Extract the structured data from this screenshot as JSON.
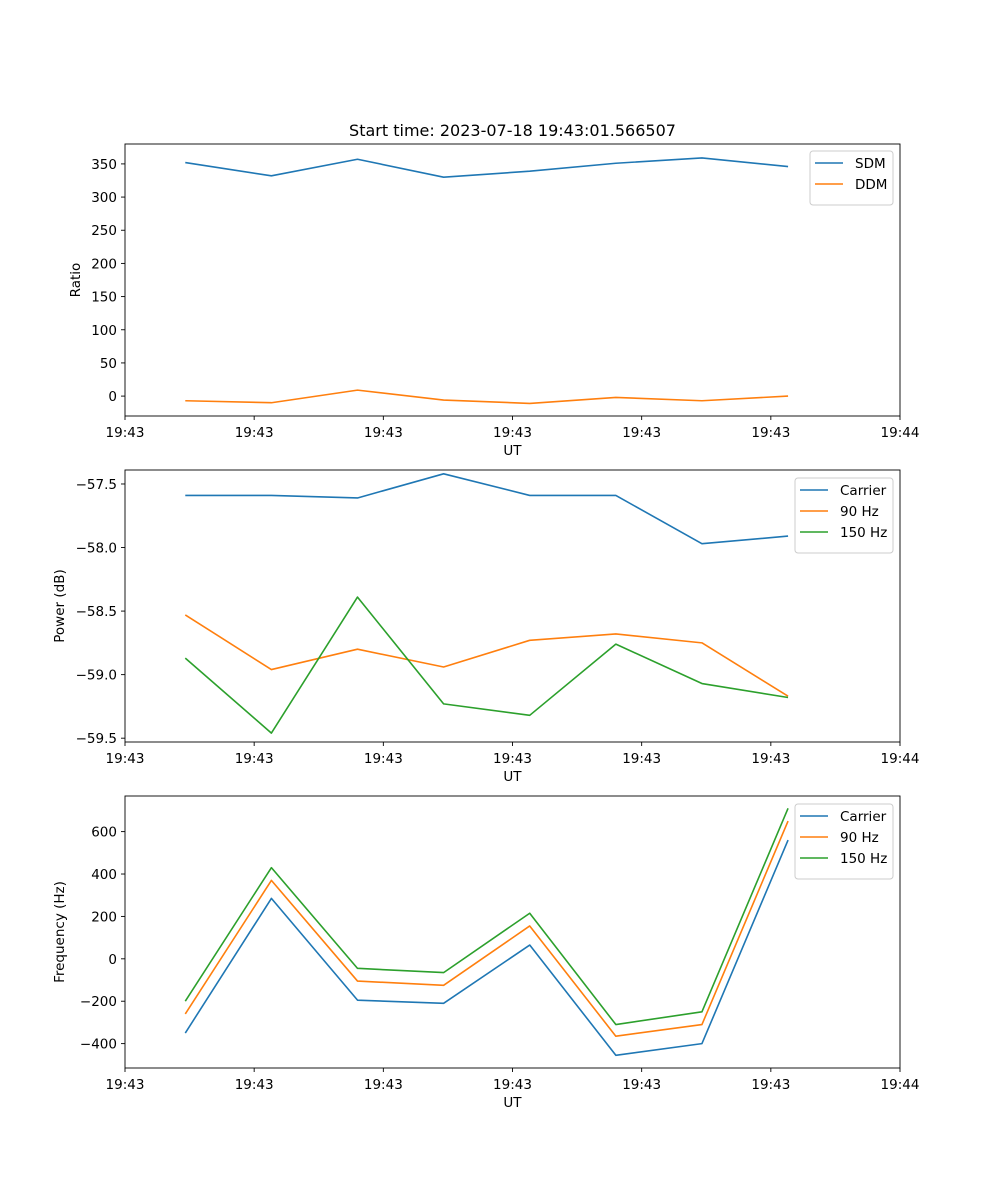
{
  "chart_data": [
    {
      "type": "line",
      "title": "Start time: 2023-07-18 19:43:01.566507",
      "xlabel": "UT",
      "ylabel": "Ratio",
      "xlim": [
        0,
        9
      ],
      "x_ticks": [
        0,
        1.5,
        3,
        4.5,
        6,
        7.5,
        9
      ],
      "x_tick_labels": [
        "19:43",
        "19:43",
        "19:43",
        "19:43",
        "19:43",
        "19:43",
        "19:44"
      ],
      "ylim": [
        -30,
        380
      ],
      "y_ticks": [
        0,
        50,
        100,
        150,
        200,
        250,
        300,
        350
      ],
      "y_tick_labels": [
        "0",
        "50",
        "100",
        "150",
        "200",
        "250",
        "300",
        "350"
      ],
      "x": [
        0.7,
        1.7,
        2.7,
        3.7,
        4.7,
        5.7,
        6.7,
        7.7
      ],
      "series": [
        {
          "name": "SDM",
          "color": "#1f77b4",
          "values": [
            352,
            332,
            357,
            330,
            339,
            351,
            359,
            346
          ]
        },
        {
          "name": "DDM",
          "color": "#ff7f0e",
          "values": [
            -7,
            -10,
            9,
            -6,
            -11,
            -2,
            -7,
            0
          ]
        }
      ],
      "legend_position": "top-right"
    },
    {
      "type": "line",
      "title": "",
      "xlabel": "UT",
      "ylabel": "Power (dB)",
      "xlim": [
        0,
        9
      ],
      "x_ticks": [
        0,
        1.5,
        3,
        4.5,
        6,
        7.5,
        9
      ],
      "x_tick_labels": [
        "19:43",
        "19:43",
        "19:43",
        "19:43",
        "19:43",
        "19:43",
        "19:44"
      ],
      "ylim": [
        -59.53,
        -57.39
      ],
      "y_ticks": [
        -57.5,
        -58.0,
        -58.5,
        -59.0,
        -59.5
      ],
      "y_tick_labels": [
        "−57.5",
        "−58.0",
        "−58.5",
        "−59.0",
        "−59.5"
      ],
      "x": [
        0.7,
        1.7,
        2.7,
        3.7,
        4.7,
        5.7,
        6.7,
        7.7
      ],
      "series": [
        {
          "name": "Carrier",
          "color": "#1f77b4",
          "values": [
            -57.59,
            -57.59,
            -57.61,
            -57.42,
            -57.59,
            -57.59,
            -57.97,
            -57.91
          ]
        },
        {
          "name": "90 Hz",
          "color": "#ff7f0e",
          "values": [
            -58.53,
            -58.96,
            -58.8,
            -58.94,
            -58.73,
            -58.68,
            -58.75,
            -59.17
          ]
        },
        {
          "name": "150 Hz",
          "color": "#2ca02c",
          "values": [
            -58.87,
            -59.46,
            -58.39,
            -59.23,
            -59.32,
            -58.76,
            -59.07,
            -59.18
          ]
        }
      ],
      "legend_position": "top-right"
    },
    {
      "type": "line",
      "title": "",
      "xlabel": "UT",
      "ylabel": "Frequency (Hz)",
      "xlim": [
        0,
        9
      ],
      "x_ticks": [
        0,
        1.5,
        3,
        4.5,
        6,
        7.5,
        9
      ],
      "x_tick_labels": [
        "19:43",
        "19:43",
        "19:43",
        "19:43",
        "19:43",
        "19:43",
        "19:44"
      ],
      "ylim": [
        -515,
        768
      ],
      "y_ticks": [
        -400,
        -200,
        0,
        200,
        400,
        600
      ],
      "y_tick_labels": [
        "−400",
        "−200",
        "0",
        "200",
        "400",
        "600"
      ],
      "x": [
        0.7,
        1.7,
        2.7,
        3.7,
        4.7,
        5.7,
        6.7,
        7.7
      ],
      "series": [
        {
          "name": "Carrier",
          "color": "#1f77b4",
          "values": [
            -350,
            285,
            -195,
            -210,
            65,
            -455,
            -400,
            560
          ]
        },
        {
          "name": "90 Hz",
          "color": "#ff7f0e",
          "values": [
            -260,
            370,
            -105,
            -125,
            155,
            -365,
            -310,
            650
          ]
        },
        {
          "name": "150 Hz",
          "color": "#2ca02c",
          "values": [
            -200,
            430,
            -45,
            -65,
            215,
            -310,
            -250,
            710
          ]
        }
      ],
      "legend_position": "top-right"
    }
  ]
}
